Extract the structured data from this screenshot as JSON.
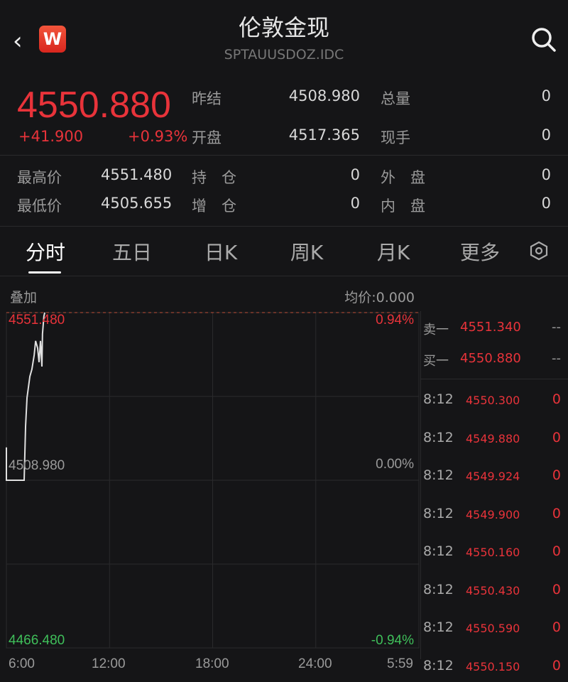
{
  "header": {
    "title": "伦敦金现",
    "code": "SPTAUUSDOZ.IDC",
    "logo_letter": "W",
    "back_icon": "chevron-left-icon",
    "search_icon": "search-icon"
  },
  "quote": {
    "price": "4550.880",
    "change": "+41.900",
    "change_pct": "+0.93%",
    "prev_close_label": "昨结",
    "prev_close": "4508.980",
    "open_label": "开盘",
    "open": "4517.365",
    "volume_label": "总量",
    "volume": "0",
    "last_qty_label": "现手",
    "last_qty": "0",
    "high_label": "最高价",
    "high": "4551.480",
    "low_label": "最低价",
    "low": "4505.655",
    "oi_label": "持　仓",
    "oi": "0",
    "oi_chg_label": "增　仓",
    "oi_chg": "0",
    "outer_label": "外　盘",
    "outer": "0",
    "inner_label": "内　盘",
    "inner": "0"
  },
  "tabs": [
    "分时",
    "五日",
    "日K",
    "周K",
    "月K",
    "更多"
  ],
  "chart": {
    "overlay_label": "叠加",
    "avg_label": "均价:0.000",
    "top_price": "4551.480",
    "mid_price": "4508.980",
    "bot_price": "4466.480",
    "top_pct": "0.94%",
    "mid_pct": "0.00%",
    "bot_pct": "-0.94%",
    "x_ticks": [
      "6:00",
      "12:00",
      "18:00",
      "24:00",
      "5:59"
    ],
    "line_color": "#e0e0e0",
    "up_color": "#e8333a",
    "down_color": "#3fbf5a"
  },
  "chart_data": {
    "type": "line",
    "xlabel": "",
    "ylabel": "",
    "x_range": [
      "6:00",
      "5:59"
    ],
    "ylim": [
      4466.48,
      4551.48
    ],
    "reference": 4508.98,
    "series": [
      {
        "minutes_from_6": [
          0,
          0,
          62,
          67,
          72,
          82,
          89,
          97,
          102,
          109,
          114,
          119,
          124,
          126,
          131,
          134
        ],
        "values": [
          4517.3,
          4508.98,
          4508.98,
          4522.7,
          4529.9,
          4535.3,
          4537.1,
          4540.7,
          4544.3,
          4542.5,
          4538.9,
          4544.3,
          4537.8,
          4546.1,
          4550.6,
          4551.48
        ]
      }
    ]
  },
  "orderbook": {
    "ask_label": "卖一",
    "ask": "4551.340",
    "ask_vol": "--",
    "bid_label": "买一",
    "bid": "4550.880",
    "bid_vol": "--"
  },
  "trades": [
    {
      "t": "8:12",
      "p": "4550.300",
      "v": "0"
    },
    {
      "t": "8:12",
      "p": "4549.880",
      "v": "0"
    },
    {
      "t": "8:12",
      "p": "4549.924",
      "v": "0"
    },
    {
      "t": "8:12",
      "p": "4549.900",
      "v": "0"
    },
    {
      "t": "8:12",
      "p": "4550.160",
      "v": "0"
    },
    {
      "t": "8:12",
      "p": "4550.430",
      "v": "0"
    },
    {
      "t": "8:12",
      "p": "4550.590",
      "v": "0"
    },
    {
      "t": "8:12",
      "p": "4550.150",
      "v": "0"
    }
  ]
}
